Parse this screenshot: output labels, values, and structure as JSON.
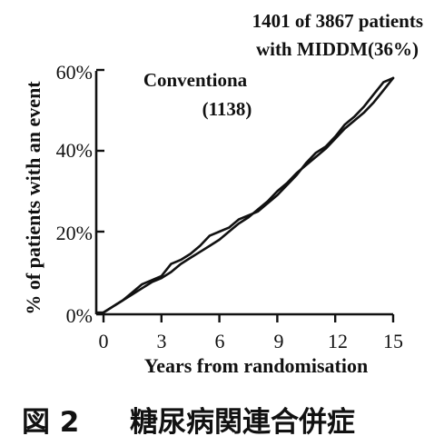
{
  "chart_data": {
    "type": "line",
    "xlabel": "Years from randomisation",
    "ylabel": "% of patients with an event",
    "xlim": [
      0,
      15
    ],
    "ylim": [
      0,
      60
    ],
    "x_ticks": [
      0,
      3,
      6,
      9,
      12,
      15
    ],
    "x_tick_labels": [
      "0",
      "3",
      "6",
      "9",
      "12",
      "15"
    ],
    "y_ticks": [
      0,
      20,
      40,
      60
    ],
    "y_tick_labels": [
      "0%",
      "20%",
      "40%",
      "60%"
    ],
    "grid": false,
    "annotations": {
      "top_line1": "1401 of 3867 patients",
      "top_line2": "with MIDDM(36%)",
      "conv_line1": "Conventiona",
      "conv_line2": "(1138)"
    },
    "series": [
      {
        "x": [
          0,
          0.5,
          1,
          1.5,
          2,
          2.5,
          3,
          3.5,
          4,
          4.5,
          5,
          5.5,
          6,
          6.5,
          7,
          7.5,
          8,
          8.5,
          9,
          9.5,
          10,
          10.5,
          11,
          11.5,
          12,
          12.5,
          13,
          13.5,
          14,
          14.5,
          15
        ],
        "values": [
          0,
          1.5,
          3,
          4.5,
          6,
          7.5,
          8.5,
          10,
          12,
          13.5,
          15,
          16.5,
          18,
          20,
          22,
          23.5,
          25.5,
          27.5,
          30,
          32,
          34.5,
          36.5,
          38.5,
          40.5,
          43,
          45.5,
          47.5,
          49.5,
          52,
          55,
          58
        ]
      },
      {
        "x": [
          0,
          0.5,
          1,
          1.5,
          2,
          2.5,
          3,
          3.5,
          4,
          4.5,
          5,
          5.5,
          6,
          6.5,
          7,
          7.5,
          8,
          8.5,
          9,
          9.5,
          10,
          10.5,
          11,
          11.5,
          12,
          12.5,
          13,
          13.5,
          14,
          14.5,
          15
        ],
        "values": [
          0,
          1.5,
          3,
          5,
          7,
          8,
          9,
          12,
          13,
          14.5,
          16.5,
          19,
          20,
          21,
          23,
          24,
          25,
          27,
          29,
          31.5,
          34,
          37,
          39.5,
          41,
          43.5,
          46.5,
          48.5,
          51,
          54,
          57,
          58
        ]
      }
    ]
  },
  "caption": {
    "fig_label": "図 2",
    "title": "糖尿病関連合併症"
  }
}
